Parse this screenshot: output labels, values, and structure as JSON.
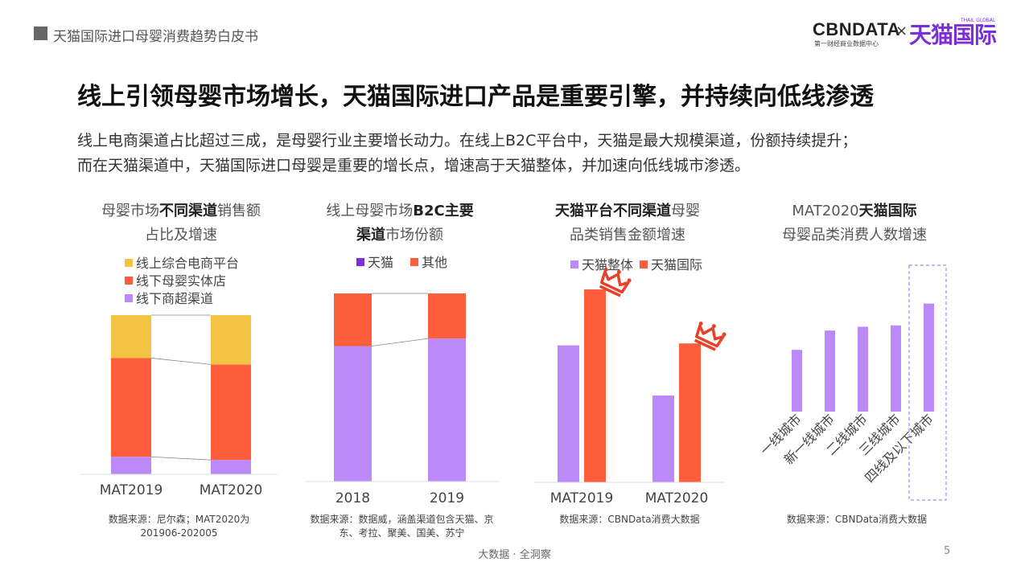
{
  "header": {
    "title": "天猫国际进口母婴消费趋势白皮书"
  },
  "logo": {
    "cbn": "CBNDATA",
    "cbn_sub": "第一财经商业数据中心",
    "times": "×",
    "tmall": "天猫国际",
    "tmall_sub": "THAIL GLOBAL"
  },
  "main_title": "线上引领母婴市场增长，天猫国际进口产品是重要引擎，并持续向低线渗透",
  "subtitle_lines": [
    "线上电商渠道占比超过三成，是母婴行业主要增长动力。在线上B2C平台中，天猫是最大规模渠道，份额持续提升；",
    "而在天猫渠道中，天猫国际进口母婴是重要的增长点，增速高于天猫整体，并加速向低线城市渗透。"
  ],
  "colors": {
    "yellow": "#f5c344",
    "orange": "#ff5e3c",
    "purple": "#bb8af8",
    "dark_purple": "#7a2fd8"
  },
  "charts": {
    "c1": {
      "title_l1_a": "母婴市场",
      "title_l1_b": "不同渠道",
      "title_l1_c": "销售额",
      "title_l2": "占比及增速",
      "source_l1": "数据来源：尼尔森；MAT2020为",
      "source_l2": "201906-202005"
    },
    "c2": {
      "title_l1_a": "线上母婴市场",
      "title_l1_b": "B2C主要",
      "title_l2_a": "渠道",
      "title_l2_b": "市场份额",
      "source_l1": "数据来源：数据威，涵盖渠道包含天猫、京",
      "source_l2": "东、考拉、聚美、国美、苏宁"
    },
    "c3": {
      "title_l1_a": "天猫平台不同渠道",
      "title_l1_b": "母婴",
      "title_l2": "品类销售金额增速",
      "source_l1": "数据来源：CBNData消费大数据"
    },
    "c4": {
      "title_l1_a": "MAT2020",
      "title_l1_b": "天猫国际",
      "title_l2": "母婴品类消费人数增速",
      "source_l1": "数据来源：CBNData消费大数据"
    }
  },
  "chart_data": [
    {
      "type": "bar",
      "stacked": true,
      "normalized": true,
      "categories": [
        "MAT2019",
        "MAT2020"
      ],
      "series": [
        {
          "name": "线下商超渠道",
          "color": "#bb8af8",
          "values": [
            11,
            9
          ]
        },
        {
          "name": "线下母婴实体店",
          "color": "#ff5e3c",
          "values": [
            62,
            60
          ]
        },
        {
          "name": "线上综合电商平台",
          "color": "#f5c344",
          "values": [
            27,
            31
          ]
        }
      ],
      "legend_order": [
        "线上综合电商平台",
        "线下母婴实体店",
        "线下商超渠道"
      ]
    },
    {
      "type": "bar",
      "stacked": true,
      "normalized": true,
      "categories": [
        "2018",
        "2019"
      ],
      "series": [
        {
          "name": "天猫",
          "color": "#bb8af8",
          "legend_color": "#7a2fd8",
          "values": [
            72,
            76
          ]
        },
        {
          "name": "其他",
          "color": "#ff5e3c",
          "values": [
            28,
            24
          ]
        }
      ]
    },
    {
      "type": "bar",
      "categories": [
        "MAT2019",
        "MAT2020"
      ],
      "series": [
        {
          "name": "天猫整体",
          "color": "#bb8af8",
          "values": [
            71,
            45
          ]
        },
        {
          "name": "天猫国际",
          "color": "#ff5e3c",
          "values": [
            100,
            72
          ]
        }
      ],
      "annotation": "crown-icon on 天猫国际 bars"
    },
    {
      "type": "bar",
      "categories": [
        "一线城市",
        "新一线城市",
        "二线城市",
        "三线城市",
        "四线及以下城市"
      ],
      "values": [
        48,
        63,
        66,
        67,
        84
      ],
      "color": "#bb8af8",
      "highlight": "四线及以下城市"
    }
  ],
  "footer": "大数据 · 全洞察",
  "page_number": "5"
}
